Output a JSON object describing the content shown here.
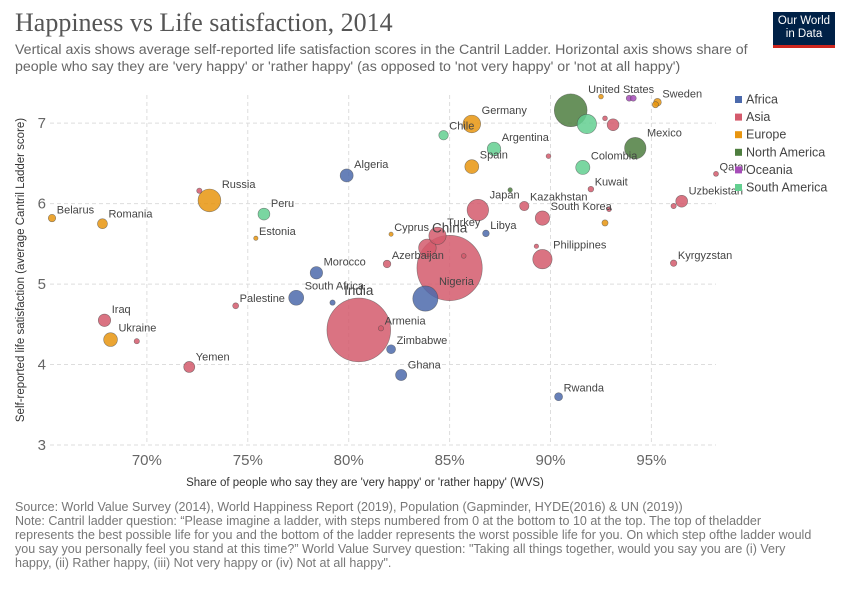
{
  "header": {
    "title": "Happiness vs Life satisfaction, 2014",
    "subtitle": "Vertical axis shows average self-reported life satisfaction scores in the Cantril Ladder. Horizontal axis shows share of people who say they are 'very happy' or 'rather happy' (as opposed to 'not very happy' or 'not at all happy')"
  },
  "logo": {
    "line1": "Our World",
    "line2": "in Data",
    "bg": "#002147",
    "accent": "#ce261e"
  },
  "footer": {
    "source": "Source: World Value Survey (2014), World Happiness Report (2019), Population (Gapminder, HYDE(2016) & UN (2019))",
    "note": "Note: Cantril ladder question: “Please imagine a ladder, with steps numbered from 0 at the bottom to 10 at the top. The top of theladder represents the best possible life for you and the bottom of the ladder represents the worst possible life for you. On which step ofthe ladder would you say you personally feel you stand at this time?” World Value Survey question: \"Taking all things together, would you say you are (i) Very happy, (ii) Rather happy, (iii) Not very happy or (iv) Not at all happy\"."
  },
  "chart_data": {
    "type": "scatter",
    "title": "Happiness vs Life satisfaction, 2014",
    "xlabel": "Share of people who say they are 'very happy' or 'rather happy' (WVS)",
    "ylabel": "Self-reported life satisfaction (average Cantril Ladder score)",
    "xlim": [
      65.2,
      98.2
    ],
    "ylim": [
      3,
      7.35
    ],
    "x_ticks": [
      70,
      75,
      80,
      85,
      90,
      95
    ],
    "x_tick_labels": [
      "70%",
      "75%",
      "80%",
      "85%",
      "90%",
      "95%"
    ],
    "y_ticks": [
      3,
      4,
      5,
      6,
      7
    ],
    "y_tick_labels": [
      "3",
      "4",
      "5",
      "6",
      "7"
    ],
    "grid": true,
    "legend_position": "top-right",
    "regions": [
      {
        "name": "Africa",
        "color": "#4c6aac"
      },
      {
        "name": "Asia",
        "color": "#d45a6c"
      },
      {
        "name": "Europe",
        "color": "#e8950f"
      },
      {
        "name": "North America",
        "color": "#4e7e3f"
      },
      {
        "name": "Oceania",
        "color": "#a64db8"
      },
      {
        "name": "South America",
        "color": "#63cf90"
      }
    ],
    "points": [
      {
        "label": "Belarus",
        "x": 65.3,
        "y": 5.82,
        "region": "Europe",
        "pop": 9
      },
      {
        "label": "Romania",
        "x": 67.8,
        "y": 5.75,
        "region": "Europe",
        "pop": 20
      },
      {
        "label": "Iraq",
        "x": 67.9,
        "y": 4.55,
        "region": "Asia",
        "pop": 35
      },
      {
        "label": "Ukraine",
        "x": 68.2,
        "y": 4.31,
        "region": "Europe",
        "pop": 45
      },
      {
        "label": "",
        "x": 69.5,
        "y": 4.29,
        "region": "Asia",
        "pop": 3
      },
      {
        "label": "Yemen",
        "x": 72.1,
        "y": 3.97,
        "region": "Asia",
        "pop": 26
      },
      {
        "label": "",
        "x": 72.6,
        "y": 6.16,
        "region": "Asia",
        "pop": 3
      },
      {
        "label": "Russia",
        "x": 73.1,
        "y": 6.04,
        "region": "Europe",
        "pop": 144
      },
      {
        "label": "Palestine",
        "x": 74.4,
        "y": 4.73,
        "region": "Asia",
        "pop": 4.5
      },
      {
        "label": "Estonia",
        "x": 75.4,
        "y": 5.57,
        "region": "Europe",
        "pop": 1.3
      },
      {
        "label": "Peru",
        "x": 75.8,
        "y": 5.87,
        "region": "South America",
        "pop": 31
      },
      {
        "label": "South Africa",
        "x": 77.4,
        "y": 4.83,
        "region": "Africa",
        "pop": 55
      },
      {
        "label": "Morocco",
        "x": 78.4,
        "y": 5.14,
        "region": "Africa",
        "pop": 35
      },
      {
        "label": "",
        "x": 79.2,
        "y": 4.77,
        "region": "Africa",
        "pop": 3
      },
      {
        "label": "Algeria",
        "x": 79.9,
        "y": 6.35,
        "region": "Africa",
        "pop": 39
      },
      {
        "label": "India",
        "x": 80.5,
        "y": 4.43,
        "region": "Asia",
        "pop": 1300
      },
      {
        "label": "Armenia",
        "x": 81.6,
        "y": 4.45,
        "region": "Asia",
        "pop": 3
      },
      {
        "label": "Azerbaijan",
        "x": 81.9,
        "y": 5.25,
        "region": "Asia",
        "pop": 9.5
      },
      {
        "label": "Cyprus",
        "x": 82.1,
        "y": 5.62,
        "region": "Europe",
        "pop": 1.2
      },
      {
        "label": "Zimbabwe",
        "x": 82.1,
        "y": 4.19,
        "region": "Africa",
        "pop": 15
      },
      {
        "label": "Ghana",
        "x": 82.6,
        "y": 3.87,
        "region": "Africa",
        "pop": 27
      },
      {
        "label": "Nigeria",
        "x": 83.8,
        "y": 4.82,
        "region": "Africa",
        "pop": 180
      },
      {
        "label": "",
        "x": 83.9,
        "y": 5.45,
        "region": "Asia",
        "pop": 80
      },
      {
        "label": "Turkey",
        "x": 84.4,
        "y": 5.6,
        "region": "Asia",
        "pop": 77
      },
      {
        "label": "Chile",
        "x": 84.7,
        "y": 6.85,
        "region": "South America",
        "pop": 17.6
      },
      {
        "label": "China",
        "x": 85.0,
        "y": 5.2,
        "region": "Asia",
        "pop": 1370
      },
      {
        "label": "",
        "x": 85.7,
        "y": 5.35,
        "region": "Asia",
        "pop": 2
      },
      {
        "label": "Spain",
        "x": 86.1,
        "y": 6.46,
        "region": "Europe",
        "pop": 46
      },
      {
        "label": "Germany",
        "x": 86.1,
        "y": 6.99,
        "region": "Europe",
        "pop": 81
      },
      {
        "label": "Japan",
        "x": 86.4,
        "y": 5.92,
        "region": "Asia",
        "pop": 127
      },
      {
        "label": "Libya",
        "x": 86.8,
        "y": 5.63,
        "region": "Africa",
        "pop": 6.3
      },
      {
        "label": "Argentina",
        "x": 87.2,
        "y": 6.68,
        "region": "South America",
        "pop": 43
      },
      {
        "label": "",
        "x": 88.0,
        "y": 6.17,
        "region": "North America",
        "pop": 1.5
      },
      {
        "label": "Kazakhstan",
        "x": 88.7,
        "y": 5.97,
        "region": "Asia",
        "pop": 17
      },
      {
        "label": "",
        "x": 89.3,
        "y": 5.47,
        "region": "Asia",
        "pop": 1.5
      },
      {
        "label": "Philippines",
        "x": 89.6,
        "y": 5.31,
        "region": "Asia",
        "pop": 100
      },
      {
        "label": "South Korea",
        "x": 89.6,
        "y": 5.82,
        "region": "Asia",
        "pop": 50
      },
      {
        "label": "",
        "x": 89.9,
        "y": 6.59,
        "region": "Asia",
        "pop": 2
      },
      {
        "label": "United States",
        "x": 91.0,
        "y": 7.16,
        "region": "North America",
        "pop": 320
      },
      {
        "label": "Colombia",
        "x": 91.6,
        "y": 6.45,
        "region": "South America",
        "pop": 48
      },
      {
        "label": "",
        "x": 91.8,
        "y": 6.99,
        "region": "South America",
        "pop": 100
      },
      {
        "label": "Kuwait",
        "x": 92.0,
        "y": 6.18,
        "region": "Asia",
        "pop": 3.8
      },
      {
        "label": "",
        "x": 92.5,
        "y": 7.33,
        "region": "Europe",
        "pop": 2
      },
      {
        "label": "",
        "x": 92.7,
        "y": 5.76,
        "region": "Europe",
        "pop": 5
      },
      {
        "label": "",
        "x": 92.7,
        "y": 7.06,
        "region": "Asia",
        "pop": 2
      },
      {
        "label": "",
        "x": 92.9,
        "y": 5.93,
        "region": "Asia",
        "pop": 2
      },
      {
        "label": "",
        "x": 93.1,
        "y": 6.98,
        "region": "Asia",
        "pop": 31
      },
      {
        "label": "",
        "x": 93.9,
        "y": 7.31,
        "region": "Oceania",
        "pop": 4.5
      },
      {
        "label": "",
        "x": 94.1,
        "y": 7.31,
        "region": "Oceania",
        "pop": 4.5
      },
      {
        "label": "Mexico",
        "x": 94.2,
        "y": 6.69,
        "region": "North America",
        "pop": 125
      },
      {
        "label": "Sweden",
        "x": 95.3,
        "y": 7.26,
        "region": "Europe",
        "pop": 9.7
      },
      {
        "label": "Uzbekistan",
        "x": 96.5,
        "y": 6.03,
        "region": "Asia",
        "pop": 31
      },
      {
        "label": "",
        "x": 96.1,
        "y": 5.97,
        "region": "Asia",
        "pop": 3
      },
      {
        "label": "Kyrgyzstan",
        "x": 96.1,
        "y": 5.26,
        "region": "Asia",
        "pop": 5.8
      },
      {
        "label": "",
        "x": 95.2,
        "y": 7.23,
        "region": "Europe",
        "pop": 5.2
      },
      {
        "label": "Qatar",
        "x": 98.2,
        "y": 6.37,
        "region": "Asia",
        "pop": 2.4
      },
      {
        "label": "Rwanda",
        "x": 90.4,
        "y": 3.6,
        "region": "Africa",
        "pop": 11
      }
    ]
  }
}
